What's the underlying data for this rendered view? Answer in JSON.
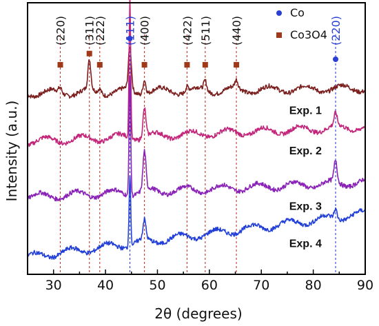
{
  "chart_data": {
    "type": "line",
    "xlabel": "2θ (degrees)",
    "ylabel": "Intensity (a.u.)",
    "xlim": [
      25,
      90
    ],
    "x_ticks": [
      30,
      40,
      50,
      60,
      70,
      80,
      90
    ],
    "y_scale": "arbitrary units, stacked traces",
    "grid": false,
    "series": [
      {
        "name": "Exp. 1",
        "color": "#7b1e1e",
        "baseline": 0.7,
        "slope": 0.02,
        "peaks": [
          [
            31.3,
            0.02
          ],
          [
            36.9,
            0.12
          ],
          [
            38.9,
            0.02
          ],
          [
            44.7,
            0.18
          ],
          [
            47.5,
            0.06
          ],
          [
            55.7,
            0.02
          ],
          [
            59.2,
            0.04
          ],
          [
            65.2,
            0.03
          ]
        ]
      },
      {
        "name": "Exp. 2",
        "color": "#c2257a",
        "baseline": 0.5,
        "slope": 0.06,
        "peaks": [
          [
            44.7,
            0.58
          ],
          [
            47.5,
            0.12
          ],
          [
            84.3,
            0.05
          ]
        ]
      },
      {
        "name": "Exp. 3",
        "color": "#8a22b8",
        "baseline": 0.27,
        "slope": 0.06,
        "peaks": [
          [
            44.7,
            0.5
          ],
          [
            47.5,
            0.16
          ],
          [
            84.3,
            0.09
          ]
        ]
      },
      {
        "name": "Exp. 4",
        "color": "#2240d8",
        "baseline": 0.02,
        "slope": 0.18,
        "peaks": [
          [
            44.7,
            0.3
          ],
          [
            47.5,
            0.08
          ],
          [
            84.3,
            0.04
          ]
        ]
      }
    ],
    "reference_lines": [
      {
        "x": 31.3,
        "label": "(220)",
        "phase": "Co3O4",
        "color": "#c0392b",
        "marker": true
      },
      {
        "x": 36.9,
        "label": "(311)",
        "phase": "Co3O4",
        "color": "#c0392b",
        "marker": true
      },
      {
        "x": 38.9,
        "label": "(222)",
        "phase": "Co3O4",
        "color": "#c0392b",
        "marker": true
      },
      {
        "x": 44.7,
        "label": "(111)",
        "phase": "Co",
        "color": "#2a3fd6",
        "marker": true
      },
      {
        "x": 47.5,
        "label": "(400)",
        "phase": "Co3O4",
        "color": "#c0392b",
        "marker": true
      },
      {
        "x": 55.7,
        "label": "(422)",
        "phase": "Co3O4",
        "color": "#c0392b",
        "marker": true
      },
      {
        "x": 59.2,
        "label": "(511)",
        "phase": "Co3O4",
        "color": "#c0392b",
        "marker": true
      },
      {
        "x": 65.2,
        "label": "(440)",
        "phase": "Co3O4",
        "color": "#c0392b",
        "marker": true
      },
      {
        "x": 84.3,
        "label": "(220)",
        "phase": "Co",
        "color": "#2a3fd6",
        "marker": true
      }
    ],
    "legend": [
      {
        "label": "Co",
        "marker": "circle",
        "color": "#2a3fd6"
      },
      {
        "label": "Co3O4",
        "marker": "square",
        "color": "#a0391a"
      }
    ],
    "legend_position": "top-right"
  }
}
